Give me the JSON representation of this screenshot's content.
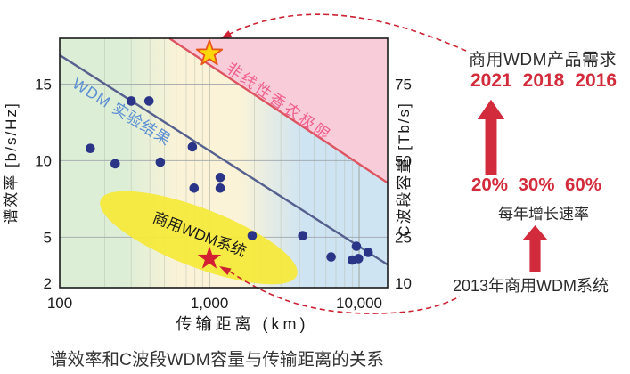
{
  "figure": {
    "caption": "谱效率和C波段WDM容量与传输距离的关系"
  },
  "colors": {
    "accent_red": "#d22b3b",
    "text_dark": "#2b2b2b"
  },
  "chart_data": {
    "type": "scatter",
    "x_axis": {
      "label": "传输距离 (km)",
      "scale": "log",
      "tick_values": [
        100,
        1000,
        10000
      ],
      "tick_labels": [
        "100",
        "1,000",
        "10,000"
      ],
      "range": [
        100,
        15500
      ]
    },
    "y_left": {
      "label": "谱效率 [b/s/Hz]",
      "tick_values": [
        2,
        5,
        10,
        15
      ],
      "range": [
        1.7,
        18.0
      ]
    },
    "y_right": {
      "label": "C波段容量 [Tb/s]",
      "tick_values": [
        10,
        25,
        50,
        75
      ],
      "scale_factor_vs_left": 5
    },
    "series": [
      {
        "name": "WDM实验结果数据点",
        "points": [
          [
            300,
            13.9
          ],
          [
            395,
            13.9
          ],
          [
            160,
            10.8
          ],
          [
            235,
            9.8
          ],
          [
            470,
            9.9
          ],
          [
            770,
            10.9
          ],
          [
            790,
            8.2
          ],
          [
            1180,
            8.9
          ],
          [
            1180,
            8.2
          ],
          [
            1930,
            5.1
          ],
          [
            4200,
            5.1
          ],
          [
            6500,
            3.7
          ],
          [
            9000,
            3.5
          ],
          [
            9900,
            3.6
          ],
          [
            9600,
            4.4
          ],
          [
            11500,
            4.0
          ]
        ]
      }
    ],
    "trend_line": {
      "label": "WDM 实验结果",
      "from": [
        100,
        16.9
      ],
      "to": [
        15500,
        3.2
      ]
    },
    "limit_line": {
      "label": "非线性香农极限",
      "from": [
        540,
        18.0
      ],
      "to": [
        15500,
        8.55
      ]
    },
    "annotations": {
      "yellow_star": {
        "x": 1000,
        "y": 17.0
      },
      "red_star": {
        "x": 1000,
        "y": 3.6
      },
      "ellipse_label": "商用WDM系统"
    },
    "colors": {
      "region_green": "#ddeed6",
      "region_cream": "#faf3d8",
      "region_blue": "#cfe4f2",
      "region_pink": "#f8cdd9",
      "limit_line_red": "#dd5560",
      "limit_label_pink": "#f0608e",
      "trend_line": "#55608f",
      "trend_label_blue": "#5b8fd4",
      "point_navy": "#2b3588",
      "ellipse_yellow": "#f6e93c",
      "star_yellow": "#ffd60a",
      "star_yellow_stroke": "#e8561c",
      "star_red": "#d41f33",
      "dashed_red": "#cc2233",
      "grid_gray": "#9aa0a8",
      "grid_minor": "#b4baa9"
    }
  },
  "right_panel": {
    "title": "商用WDM产品需求",
    "years": [
      "2021",
      "2018",
      "2016"
    ],
    "rates": [
      "20%",
      "30%",
      "60%"
    ],
    "rates_label": "每年增长速率",
    "baseline": "2013年商用WDM系统"
  }
}
